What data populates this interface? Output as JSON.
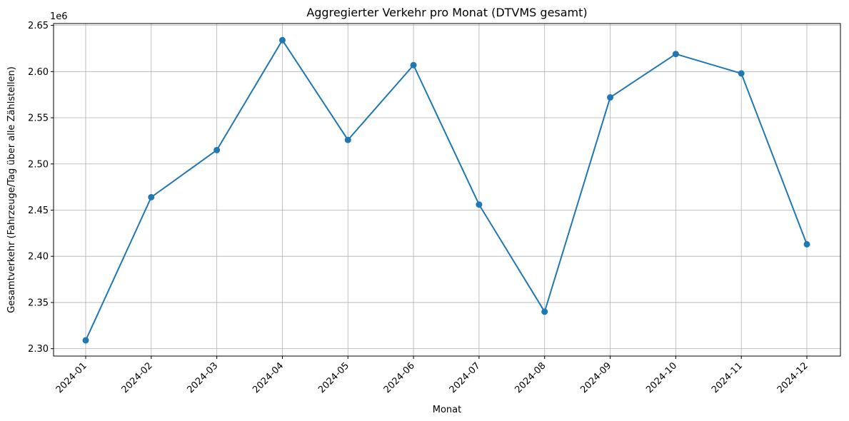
{
  "chart_data": {
    "type": "line",
    "title": "Aggregierter Verkehr pro Monat (DTVMS gesamt)",
    "xlabel": "Monat",
    "ylabel": "Gesamtverkehr (Fahrzeuge/Tag über alle Zählstellen)",
    "y_offset_label": "1e6",
    "categories": [
      "2024-01",
      "2024-02",
      "2024-03",
      "2024-04",
      "2024-05",
      "2024-06",
      "2024-07",
      "2024-08",
      "2024-09",
      "2024-10",
      "2024-11",
      "2024-12"
    ],
    "series": [
      {
        "values": [
          2309000,
          2464000,
          2515000,
          2634000,
          2526000,
          2607000,
          2456000,
          2340000,
          2572000,
          2619000,
          2598000,
          2413000
        ],
        "color": "#1f77b4"
      }
    ],
    "ylim": [
      2292000,
      2652000
    ],
    "yticks": [
      2.3,
      2.35,
      2.4,
      2.45,
      2.5,
      2.55,
      2.6,
      2.65
    ],
    "ytick_labels": [
      "2.30",
      "2.35",
      "2.40",
      "2.45",
      "2.50",
      "2.55",
      "2.60",
      "2.65"
    ],
    "grid": true,
    "markers": true
  }
}
